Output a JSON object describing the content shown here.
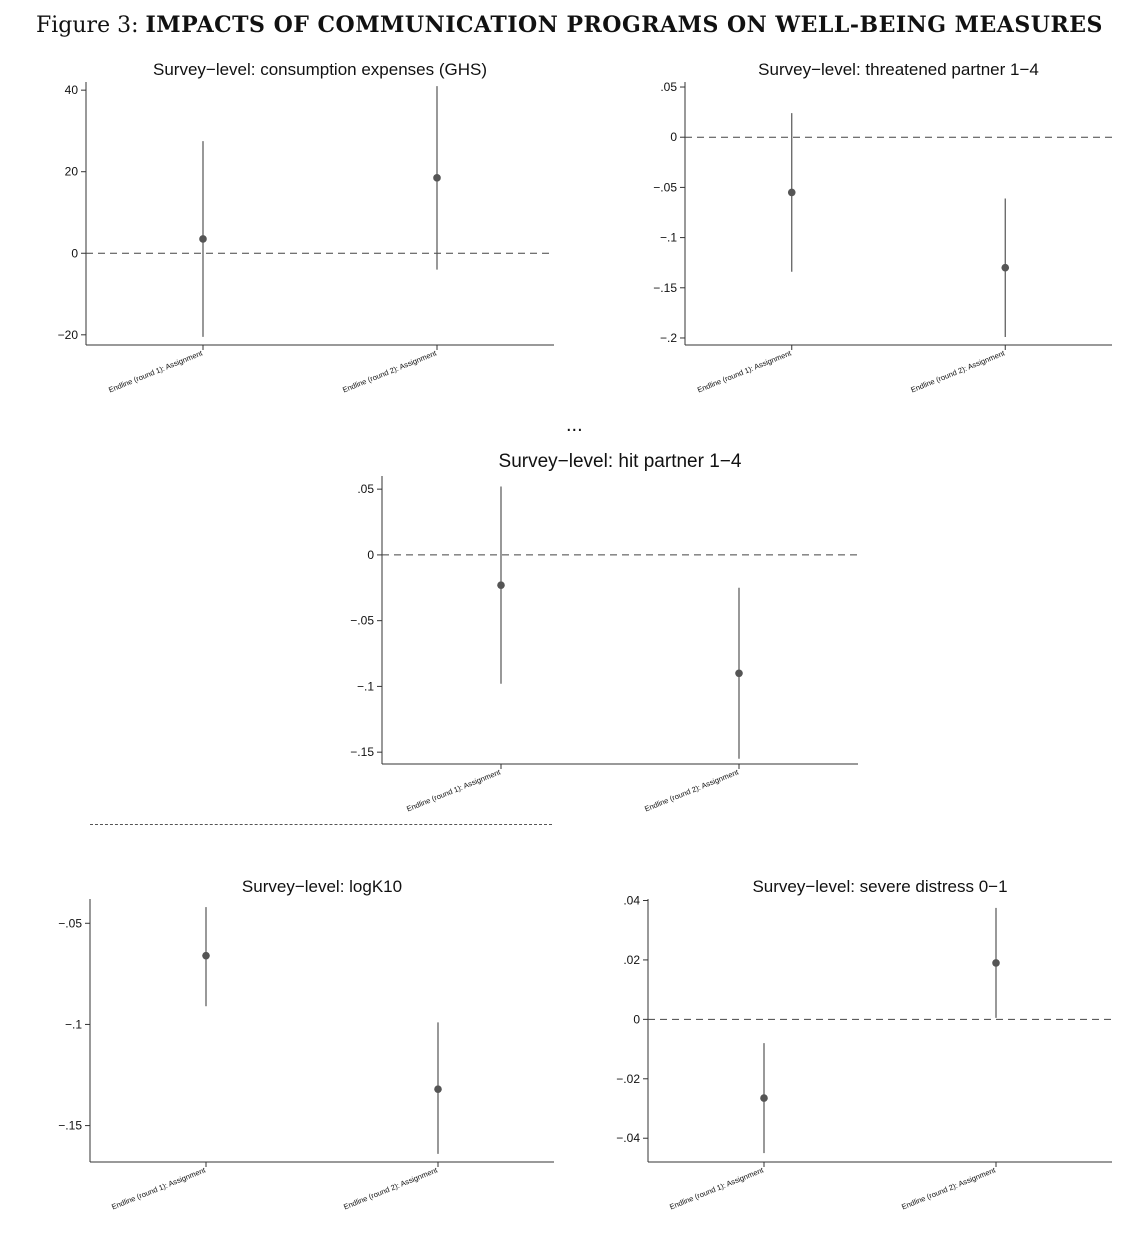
{
  "figure": {
    "label": "Figure 3:",
    "title": "IMPACTS OF COMMUNICATION PROGRAMS ON WELL-BEING MEASURES",
    "ellipsis": "..."
  },
  "chart_data": [
    {
      "type": "scatter",
      "title": "Survey−level: consumption expenses (GHS)",
      "categories": [
        "Endline (round 1): Assignment",
        "Endline (round 2): Assignment"
      ],
      "series": [
        {
          "points": [
            {
              "y": 3.5,
              "lo": -20.5,
              "hi": 27.5
            },
            {
              "y": 18.5,
              "lo": -4,
              "hi": 41
            }
          ]
        }
      ],
      "ylim": [
        -22.5,
        42
      ],
      "yticks": [
        -20,
        0,
        20,
        40
      ],
      "yticklabels": [
        "−20",
        "0",
        "20",
        "40"
      ],
      "reference_line": 0
    },
    {
      "type": "scatter",
      "title": "Survey−level: threatened partner 1−4",
      "categories": [
        "Endline (round 1): Assignment",
        "Endline (round 2): Assignment"
      ],
      "series": [
        {
          "points": [
            {
              "y": -0.055,
              "lo": -0.134,
              "hi": 0.024
            },
            {
              "y": -0.13,
              "lo": -0.199,
              "hi": -0.061
            }
          ]
        }
      ],
      "ylim": [
        -0.207,
        0.055
      ],
      "yticks": [
        -0.2,
        -0.15,
        -0.1,
        -0.05,
        0,
        0.05
      ],
      "yticklabels": [
        "−.2",
        "−.15",
        "−.1",
        "−.05",
        "0",
        ".05"
      ],
      "reference_line": 0
    },
    {
      "type": "scatter",
      "title": "Survey−level: hit partner 1−4",
      "categories": [
        "Endline (round 1): Assignment",
        "Endline (round 2): Assignment"
      ],
      "series": [
        {
          "points": [
            {
              "y": -0.023,
              "lo": -0.098,
              "hi": 0.052
            },
            {
              "y": -0.09,
              "lo": -0.155,
              "hi": -0.025
            }
          ]
        }
      ],
      "ylim": [
        -0.159,
        0.06
      ],
      "yticks": [
        -0.15,
        -0.1,
        -0.05,
        0,
        0.05
      ],
      "yticklabels": [
        "−.15",
        "−.1",
        "−.05",
        "0",
        ".05"
      ],
      "reference_line": 0
    },
    {
      "type": "scatter",
      "title": "Survey−level: logK10",
      "categories": [
        "Endline (round 1): Assignment",
        "Endline (round 2): Assignment"
      ],
      "series": [
        {
          "points": [
            {
              "y": -0.066,
              "lo": -0.091,
              "hi": -0.042
            },
            {
              "y": -0.132,
              "lo": -0.164,
              "hi": -0.099
            }
          ]
        }
      ],
      "ylim": [
        -0.168,
        -0.038
      ],
      "yticks": [
        -0.15,
        -0.1,
        -0.05
      ],
      "yticklabels": [
        "−.15",
        "−.1",
        "−.05"
      ]
    },
    {
      "type": "scatter",
      "title": "Survey−level: severe distress 0−1",
      "categories": [
        "Endline (round 1): Assignment",
        "Endline (round 2): Assignment"
      ],
      "series": [
        {
          "points": [
            {
              "y": -0.0265,
              "lo": -0.045,
              "hi": -0.008
            },
            {
              "y": 0.019,
              "lo": 0.0005,
              "hi": 0.0375
            }
          ]
        }
      ],
      "ylim": [
        -0.048,
        0.0405
      ],
      "yticks": [
        -0.04,
        -0.02,
        0,
        0.02,
        0.04
      ],
      "yticklabels": [
        "−.04",
        "−.02",
        "0",
        ".02",
        ".04"
      ],
      "reference_line": 0
    }
  ]
}
